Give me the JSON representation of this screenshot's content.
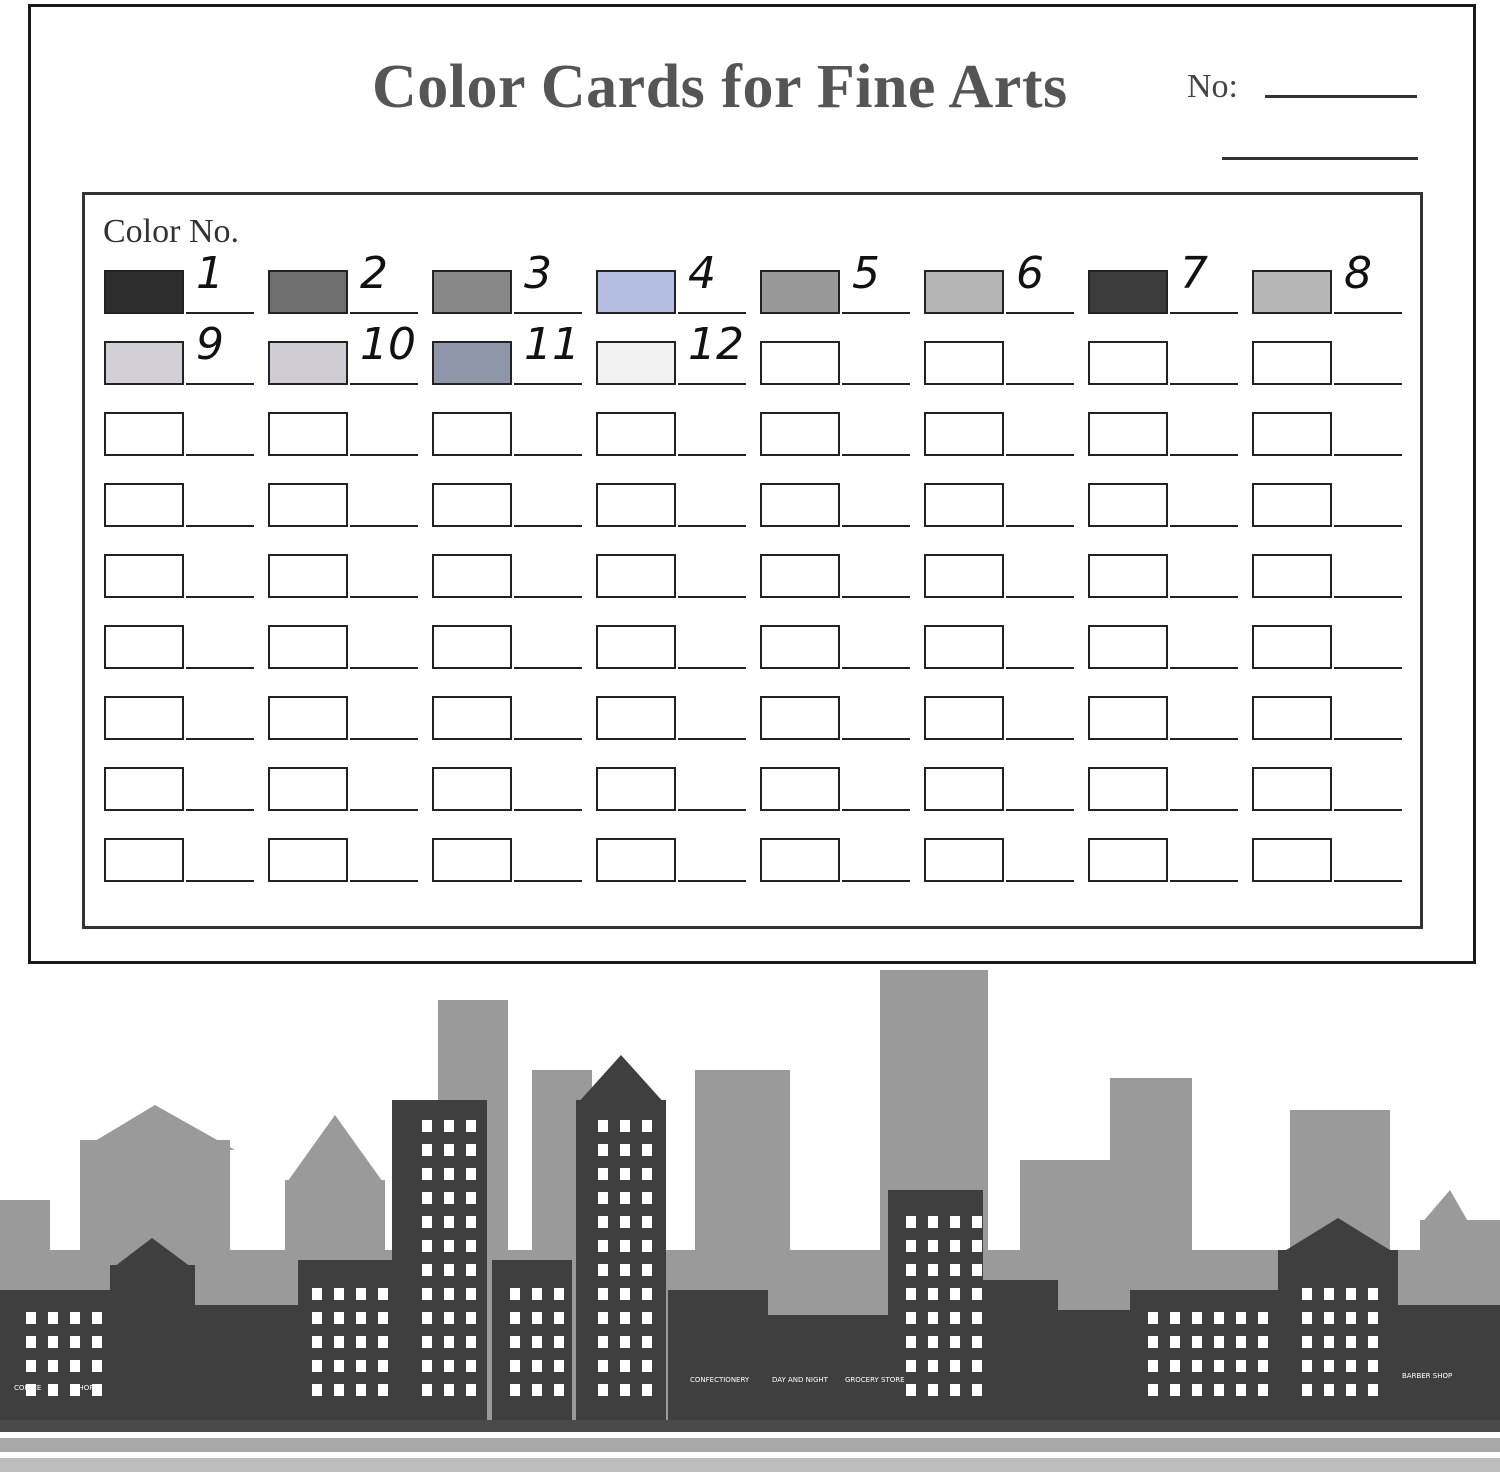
{
  "card": {
    "title": "Color Cards for Fine Arts",
    "no_label": "No:",
    "color_no_label": "Color No.",
    "columns": 8,
    "rows": 9,
    "swatches": [
      {
        "label": "1",
        "color": "#2e2e2e"
      },
      {
        "label": "2",
        "color": "#6e6e6e"
      },
      {
        "label": "3",
        "color": "#878787"
      },
      {
        "label": "4",
        "color": "#b4bee0"
      },
      {
        "label": "5",
        "color": "#989898"
      },
      {
        "label": "6",
        "color": "#b4b4b4"
      },
      {
        "label": "7",
        "color": "#3c3c3c"
      },
      {
        "label": "8",
        "color": "#b6b6b6"
      },
      {
        "label": "9",
        "color": "#d2d0d6"
      },
      {
        "label": "10",
        "color": "#cfcdd3"
      },
      {
        "label": "11",
        "color": "#8e96aa"
      },
      {
        "label": "12",
        "color": "#f2f2f2"
      }
    ]
  },
  "skyline": {
    "signs": [
      "COFFEE",
      "SHOP",
      "CONFECTIONERY",
      "DAY AND NIGHT",
      "GROCERY STORE",
      "BARBER SHOP"
    ],
    "back_color": "#9a9a9a",
    "front_color": "#3f3f3f"
  }
}
